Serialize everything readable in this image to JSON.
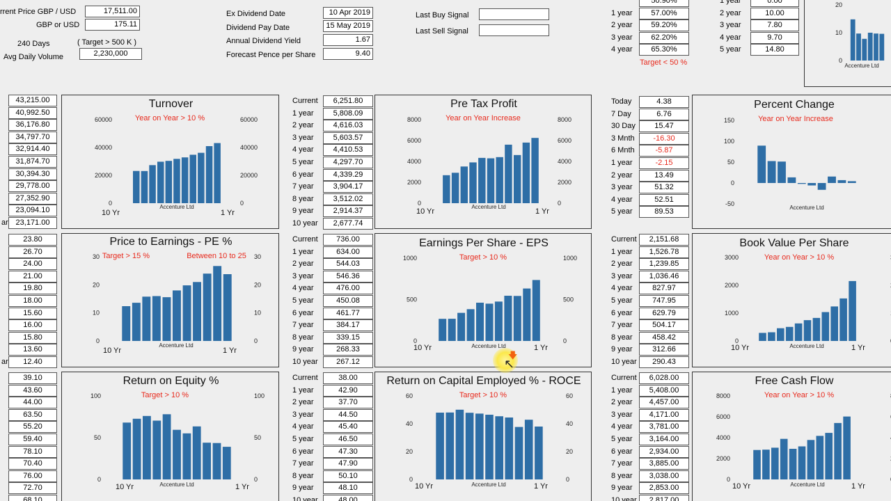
{
  "colors": {
    "bar": "#2e6ea6",
    "target": "#e8291c",
    "negative": "#e8291c"
  },
  "header": {
    "price_label": "rrent Price GBP / USD",
    "price_value": "17,511.00",
    "gbp_label": "GBP or USD",
    "gbp_value": "175.11",
    "days_label": "240 Days",
    "target_label": "( Target > 500 K )",
    "volume_label": "Avg Daily Volume",
    "volume_value": "2,230,000",
    "ex_div_label": "Ex Dividend Date",
    "ex_div_value": "10 Apr 2019",
    "pay_label": "Dividend Pay Date",
    "pay_value": "15 May 2019",
    "yield_label": "Annual Dividend Yield",
    "yield_value": "1.67",
    "forecast_label": "Forecast Pence per Share",
    "forecast_value": "9.40",
    "last_buy_label": "Last Buy Signal",
    "last_buy_value": "",
    "last_sell_label": "Last Sell Signal",
    "last_sell_value": "",
    "top_mid_rows": [
      {
        "label": "",
        "value": "50.90%"
      },
      {
        "label": "1 year",
        "value": "57.00%"
      },
      {
        "label": "2 year",
        "value": "59.20%"
      },
      {
        "label": "3 year",
        "value": "62.20%"
      },
      {
        "label": "4 year",
        "value": "65.30%"
      }
    ],
    "top_mid_target": "Target < 50 %",
    "top_right_rows": [
      {
        "label": "1 year",
        "value": "0.00"
      },
      {
        "label": "2 year",
        "value": "10.00"
      },
      {
        "label": "3 year",
        "value": "7.80"
      },
      {
        "label": "4 year",
        "value": "9.70"
      },
      {
        "label": "5 year",
        "value": "14.80"
      }
    ]
  },
  "tables": {
    "col1a": [
      {
        "label": "",
        "value": "43,215.00"
      },
      {
        "label": "",
        "value": "40,992.50"
      },
      {
        "label": "",
        "value": "36,176.80"
      },
      {
        "label": "",
        "value": "34,797.70"
      },
      {
        "label": "",
        "value": "32,914.40"
      },
      {
        "label": "",
        "value": "31,874.70"
      },
      {
        "label": "",
        "value": "30,394.30"
      },
      {
        "label": "",
        "value": "29,778.00"
      },
      {
        "label": "",
        "value": "27,352.90"
      },
      {
        "label": "",
        "value": "23,094.10"
      },
      {
        "label": "ar",
        "value": "23,171.00"
      }
    ],
    "col1b": [
      {
        "label": "",
        "value": "23.80"
      },
      {
        "label": "",
        "value": "26.70"
      },
      {
        "label": "",
        "value": "24.00"
      },
      {
        "label": "",
        "value": "21.00"
      },
      {
        "label": "",
        "value": "19.80"
      },
      {
        "label": "",
        "value": "18.00"
      },
      {
        "label": "",
        "value": "15.60"
      },
      {
        "label": "",
        "value": "16.00"
      },
      {
        "label": "",
        "value": "15.80"
      },
      {
        "label": "",
        "value": "13.60"
      },
      {
        "label": "ar",
        "value": "12.40"
      }
    ],
    "col1c": [
      {
        "label": "",
        "value": "39.10"
      },
      {
        "label": "",
        "value": "43.60"
      },
      {
        "label": "",
        "value": "44.00"
      },
      {
        "label": "",
        "value": "63.50"
      },
      {
        "label": "",
        "value": "55.20"
      },
      {
        "label": "",
        "value": "59.40"
      },
      {
        "label": "",
        "value": "78.10"
      },
      {
        "label": "",
        "value": "70.40"
      },
      {
        "label": "",
        "value": "76.00"
      },
      {
        "label": "",
        "value": "72.70"
      },
      {
        "label": "",
        "value": "68.10"
      }
    ],
    "col2a": [
      {
        "label": "Current",
        "value": "6,251.80"
      },
      {
        "label": "1 year",
        "value": "5,808.09"
      },
      {
        "label": "2 year",
        "value": "4,616.03"
      },
      {
        "label": "3 year",
        "value": "5,603.57"
      },
      {
        "label": "4 year",
        "value": "4,410.53"
      },
      {
        "label": "5 year",
        "value": "4,297.70"
      },
      {
        "label": "6 year",
        "value": "4,339.29"
      },
      {
        "label": "7 year",
        "value": "3,904.17"
      },
      {
        "label": "8 year",
        "value": "3,512.02"
      },
      {
        "label": "9 year",
        "value": "2,914.37"
      },
      {
        "label": "10 year",
        "value": "2,677.74"
      }
    ],
    "col2b": [
      {
        "label": "Current",
        "value": "736.00"
      },
      {
        "label": "1 year",
        "value": "634.00"
      },
      {
        "label": "2 year",
        "value": "544.03"
      },
      {
        "label": "3 year",
        "value": "546.36"
      },
      {
        "label": "4 year",
        "value": "476.00"
      },
      {
        "label": "5 year",
        "value": "450.08"
      },
      {
        "label": "6 year",
        "value": "461.77"
      },
      {
        "label": "7 year",
        "value": "384.17"
      },
      {
        "label": "8 year",
        "value": "339.15"
      },
      {
        "label": "9 year",
        "value": "268.33"
      },
      {
        "label": "10 year",
        "value": "267.12"
      }
    ],
    "col2c": [
      {
        "label": "Current",
        "value": "38.00"
      },
      {
        "label": "1 year",
        "value": "42.90"
      },
      {
        "label": "2 year",
        "value": "37.70"
      },
      {
        "label": "3 year",
        "value": "44.50"
      },
      {
        "label": "4 year",
        "value": "45.40"
      },
      {
        "label": "5 year",
        "value": "46.50"
      },
      {
        "label": "6 year",
        "value": "47.30"
      },
      {
        "label": "7 year",
        "value": "47.90"
      },
      {
        "label": "8 year",
        "value": "50.10"
      },
      {
        "label": "9 year",
        "value": "48.10"
      },
      {
        "label": "10 year",
        "value": "48.00"
      }
    ],
    "col3a": [
      {
        "label": "Today",
        "value": "4.38",
        "neg": false
      },
      {
        "label": "7 Day",
        "value": "6.76",
        "neg": false
      },
      {
        "label": "30 Day",
        "value": "15.47",
        "neg": false
      },
      {
        "label": "3 Mnth",
        "value": "-16.30",
        "neg": true
      },
      {
        "label": "6 Mnth",
        "value": "-5.87",
        "neg": true
      },
      {
        "label": "1 year",
        "value": "-2.15",
        "neg": true
      },
      {
        "label": "2 year",
        "value": "13.49",
        "neg": false
      },
      {
        "label": "3 year",
        "value": "51.32",
        "neg": false
      },
      {
        "label": "4 year",
        "value": "52.51",
        "neg": false
      },
      {
        "label": "5 year",
        "value": "89.53",
        "neg": false
      }
    ],
    "col3b": [
      {
        "label": "Current",
        "value": "2,151.68"
      },
      {
        "label": "1 year",
        "value": "1,526.78"
      },
      {
        "label": "2 year",
        "value": "1,239.85"
      },
      {
        "label": "3 year",
        "value": "1,036.46"
      },
      {
        "label": "4 year",
        "value": "827.97"
      },
      {
        "label": "5 year",
        "value": "747.95"
      },
      {
        "label": "6 year",
        "value": "629.79"
      },
      {
        "label": "7 year",
        "value": "504.17"
      },
      {
        "label": "8 year",
        "value": "458.42"
      },
      {
        "label": "9 year",
        "value": "312.66"
      },
      {
        "label": "10 year",
        "value": "290.43"
      }
    ],
    "col3c": [
      {
        "label": "Current",
        "value": "6,028.00"
      },
      {
        "label": "1 year",
        "value": "5,408.00"
      },
      {
        "label": "2 year",
        "value": "4,457.00"
      },
      {
        "label": "3 year",
        "value": "4,171.00"
      },
      {
        "label": "4 year",
        "value": "3,781.00"
      },
      {
        "label": "5 year",
        "value": "3,164.00"
      },
      {
        "label": "6 year",
        "value": "2,934.00"
      },
      {
        "label": "7 year",
        "value": "3,885.00"
      },
      {
        "label": "8 year",
        "value": "3,038.00"
      },
      {
        "label": "9 year",
        "value": "2,853.00"
      },
      {
        "label": "10 year",
        "value": "2,817.00"
      }
    ]
  },
  "chart_data": [
    {
      "type": "bar",
      "title": "Turnover",
      "target": "Year on Year > 10 %",
      "target2": "",
      "company": "Accenture Ltd",
      "x_left": "10 Yr",
      "x_right": "1 Yr",
      "ylim": [
        0,
        60000
      ],
      "yticks": [
        "0",
        "20000",
        "40000",
        "60000"
      ],
      "right_axis": true,
      "values": [
        23171,
        23094,
        27353,
        29778,
        30394,
        31875,
        32914,
        34798,
        36177,
        40993,
        43215
      ]
    },
    {
      "type": "bar",
      "title": "Pre Tax Profit",
      "target": "Year on Year Increase",
      "target2": "",
      "company": "Accenture Ltd",
      "x_left": "10 Yr",
      "x_right": "1 Yr",
      "ylim": [
        0,
        8000
      ],
      "yticks": [
        "0",
        "2000",
        "4000",
        "6000",
        "8000"
      ],
      "right_axis": true,
      "values": [
        2677.74,
        2914.37,
        3512.02,
        3904.17,
        4339.29,
        4297.7,
        4410.53,
        5603.57,
        4616.03,
        5808.09,
        6251.8
      ]
    },
    {
      "type": "bar",
      "title": "Percent Change",
      "target": "Year on Year Increase",
      "target2": "",
      "company": "Accenture Ltd",
      "x_left": "",
      "x_right": "",
      "ylim": [
        -50,
        150
      ],
      "yticks": [
        "-50",
        "0",
        "50",
        "100",
        "150"
      ],
      "right_axis": false,
      "values": [
        89.53,
        52.51,
        51.32,
        13.49,
        -2.15,
        -5.87,
        -16.3,
        15.47,
        6.76,
        4.38
      ]
    },
    {
      "type": "bar",
      "title": "Price to Earnings - PE %",
      "target": "Target > 15 %",
      "target2": "Between 10 to 25",
      "company": "Accenture Ltd",
      "x_left": "10 Yr",
      "x_right": "1 Yr",
      "ylim": [
        0,
        30
      ],
      "yticks": [
        "0",
        "10",
        "20",
        "30"
      ],
      "right_axis": true,
      "values": [
        12.4,
        13.6,
        15.8,
        16.0,
        15.6,
        18.0,
        19.8,
        21.0,
        24.0,
        26.7,
        23.8
      ]
    },
    {
      "type": "bar",
      "title": "Earnings Per Share - EPS",
      "target": "Target > 10 %",
      "target2": "",
      "company": "Accenture Ltd",
      "x_left": "10 Yr",
      "x_right": "1 Yr",
      "ylim": [
        0,
        1000
      ],
      "yticks": [
        "0",
        "500",
        "1000"
      ],
      "right_axis": true,
      "values": [
        267.12,
        268.33,
        339.15,
        384.17,
        461.77,
        450.08,
        476.0,
        546.36,
        544.03,
        634.0,
        736.0
      ]
    },
    {
      "type": "bar",
      "title": "Book Value Per Share",
      "target": "Year on Year > 10 %",
      "target2": "",
      "company": "Accenture Ltd",
      "x_left": "10 Yr",
      "x_right": "1 Yr",
      "ylim": [
        0,
        3000
      ],
      "yticks": [
        "0",
        "1000",
        "2000",
        "3000"
      ],
      "right_axis": true,
      "values": [
        290.43,
        312.66,
        458.42,
        504.17,
        629.79,
        747.95,
        827.97,
        1036.46,
        1239.85,
        1526.78,
        2151.68
      ]
    },
    {
      "type": "bar",
      "title": "Return on Equity %",
      "target": "Target > 10 %",
      "target2": "",
      "company": "Accenture Ltd",
      "x_left": "10 Yr",
      "x_right": "1 Yr",
      "ylim": [
        0,
        100
      ],
      "yticks": [
        "0",
        "50",
        "100"
      ],
      "right_axis": true,
      "values": [
        68.1,
        72.7,
        76.0,
        70.4,
        78.1,
        59.4,
        55.2,
        63.5,
        44.0,
        43.6,
        39.1
      ]
    },
    {
      "type": "bar",
      "title": "Return on Capital Employed % - ROCE",
      "target": "Target > 10 %",
      "target2": "",
      "company": "Accenture Ltd",
      "x_left": "10 Yr",
      "x_right": "1 Yr",
      "ylim": [
        0,
        60
      ],
      "yticks": [
        "0",
        "20",
        "40",
        "60"
      ],
      "right_axis": true,
      "values": [
        48.0,
        48.1,
        50.1,
        47.9,
        47.3,
        46.5,
        45.4,
        44.5,
        37.7,
        42.9,
        38.0
      ]
    },
    {
      "type": "bar",
      "title": "Free Cash Flow",
      "target": "Year on Year > 10 %",
      "target2": "",
      "company": "Accenture Ltd",
      "x_left": "10 Yr",
      "x_right": "1 Yr",
      "ylim": [
        0,
        8000
      ],
      "yticks": [
        "0",
        "2000",
        "4000",
        "6000",
        "8000"
      ],
      "right_axis": true,
      "values": [
        2817,
        2853,
        3038,
        3885,
        2934,
        3164,
        3781,
        4171,
        4457,
        5408,
        6028
      ]
    },
    {
      "type": "bar",
      "title": "",
      "target": "",
      "target2": "",
      "company": "Accenture Ltd",
      "x_left": "",
      "x_right": "",
      "ylim": [
        0,
        20
      ],
      "yticks": [
        "0",
        "10",
        "20"
      ],
      "right_axis": false,
      "values": [
        14.8,
        9.7,
        7.8,
        10.0,
        9.7,
        9.6
      ]
    }
  ]
}
